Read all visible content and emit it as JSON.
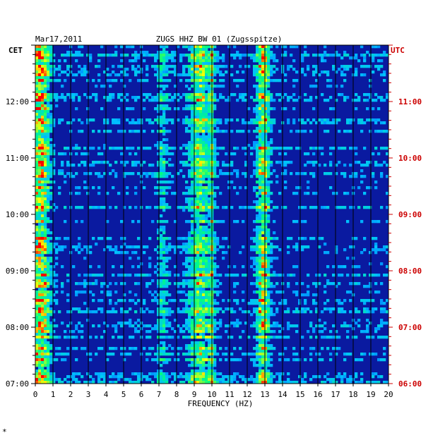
{
  "header": {
    "date": "Mar17,2011",
    "station": "ZUGS HHZ BW 01 (Zugsspitze)"
  },
  "left_tz": "CET",
  "right_tz": "UTC",
  "footer_mark": "*",
  "colors": {
    "background": "#ffffff",
    "plot_base": "#0a1aa0",
    "utc_text": "#cc0000",
    "text": "#000000"
  },
  "chart_data": {
    "type": "heatmap",
    "title": "ZUGS HHZ BW 01 (Zugsspitze)",
    "xlabel": "FREQUENCY (HZ)",
    "ylabel": "",
    "xlim": [
      0,
      20
    ],
    "x_ticks": [
      "0",
      "1",
      "2",
      "3",
      "4",
      "5",
      "6",
      "7",
      "8",
      "9",
      "10",
      "11",
      "12",
      "13",
      "14",
      "15",
      "16",
      "17",
      "18",
      "19",
      "20"
    ],
    "cet_ticks": [
      "12:00",
      "11:00",
      "10:00",
      "09:00",
      "08:00",
      "07:00"
    ],
    "utc_ticks": [
      "11:00",
      "10:00",
      "09:00",
      "08:00",
      "07:00",
      "06:00"
    ],
    "time_range_utc": [
      "06:00",
      "12:00"
    ],
    "colorscale": [
      "#000080",
      "#0000ff",
      "#00c0ff",
      "#00ff80",
      "#ffff00",
      "#ff0000"
    ],
    "energy_bands_hz": [
      {
        "center": 0.3,
        "width": 0.5,
        "intensity": 0.85
      },
      {
        "center": 9.3,
        "width": 0.6,
        "intensity": 0.6
      },
      {
        "center": 10.0,
        "width": 0.15,
        "intensity": 0.5
      },
      {
        "center": 12.9,
        "width": 0.35,
        "intensity": 0.75
      },
      {
        "center": 7.2,
        "width": 0.3,
        "intensity": 0.3
      }
    ],
    "grid": true
  }
}
